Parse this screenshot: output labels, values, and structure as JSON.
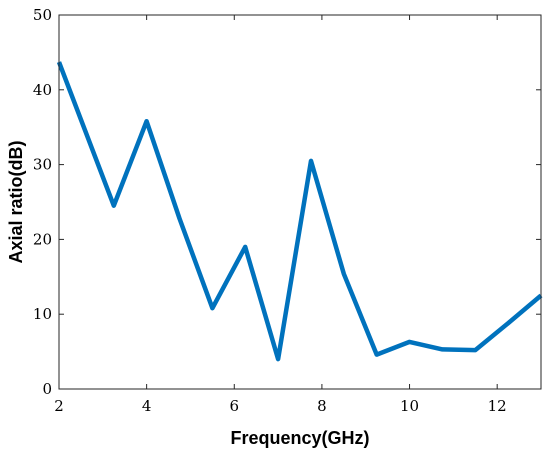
{
  "chart_data": {
    "type": "line",
    "title": "",
    "xlabel": "Frequency(GHz)",
    "ylabel": "Axial ratio(dB)",
    "xlim": [
      2,
      13
    ],
    "ylim": [
      0,
      50
    ],
    "xticks": [
      2,
      4,
      6,
      8,
      10,
      12
    ],
    "yticks": [
      0,
      10,
      20,
      30,
      40,
      50
    ],
    "grid": false,
    "line_color": "#0072BD",
    "series": [
      {
        "x": [
          2,
          3.25,
          4,
          4.75,
          5.5,
          6.25,
          7,
          7.75,
          8.5,
          9.25,
          10,
          10.75,
          11.5,
          12.25,
          13
        ],
        "values": [
          43.7,
          24.5,
          35.8,
          22.8,
          10.8,
          19.0,
          4.0,
          30.5,
          15.4,
          4.6,
          6.3,
          5.3,
          5.2,
          8.8,
          12.5
        ]
      }
    ]
  }
}
